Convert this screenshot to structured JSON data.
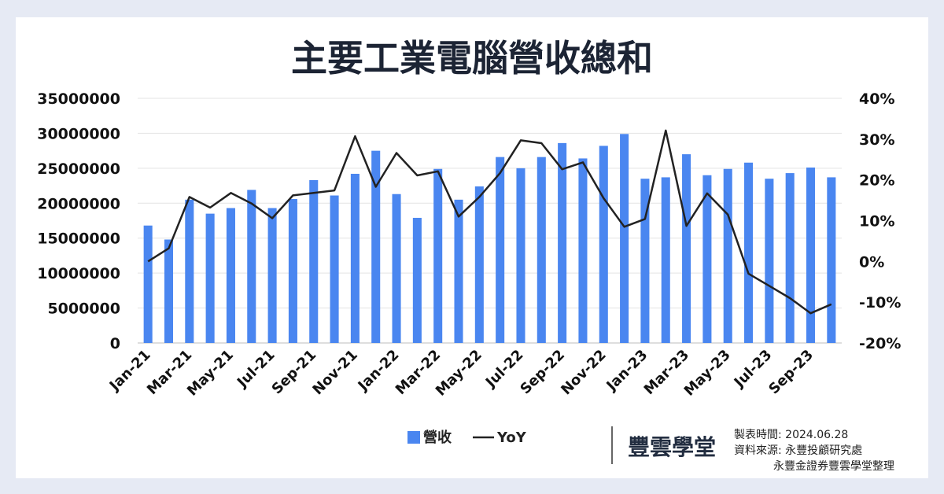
{
  "chart_data": {
    "type": "bar+line",
    "title": "主要工業電腦營收總和",
    "categories": [
      "Jan-21",
      "Feb-21",
      "Mar-21",
      "Apr-21",
      "May-21",
      "Jun-21",
      "Jul-21",
      "Aug-21",
      "Sep-21",
      "Oct-21",
      "Nov-21",
      "Dec-21",
      "Jan-22",
      "Feb-22",
      "Mar-22",
      "Apr-22",
      "May-22",
      "Jun-22",
      "Jul-22",
      "Aug-22",
      "Sep-22",
      "Oct-22",
      "Nov-22",
      "Dec-22",
      "Jan-23",
      "Feb-23",
      "Mar-23",
      "Apr-23",
      "May-23",
      "Jun-23",
      "Jul-23",
      "Aug-23",
      "Sep-23",
      "Oct-23"
    ],
    "x_tick_labels": [
      "Jan-21",
      "Mar-21",
      "May-21",
      "Jul-21",
      "Sep-21",
      "Nov-21",
      "Jan-22",
      "Mar-22",
      "May-22",
      "Jul-22",
      "Sep-22",
      "Nov-22",
      "Jan-23",
      "Mar-23",
      "May-23",
      "Jul-23",
      "Sep-23"
    ],
    "series": [
      {
        "name": "營收",
        "type": "bar",
        "axis": "left",
        "color": "#4a86f0",
        "values": [
          16800000,
          14800000,
          20500000,
          18500000,
          19300000,
          21900000,
          19300000,
          20600000,
          23300000,
          21100000,
          24200000,
          27500000,
          21300000,
          17900000,
          24900000,
          20500000,
          22400000,
          26600000,
          25000000,
          26600000,
          28600000,
          26400000,
          28200000,
          29900000,
          23500000,
          23700000,
          27000000,
          24000000,
          24900000,
          25800000,
          23500000,
          24300000,
          25100000,
          23700000
        ]
      },
      {
        "name": "YoY",
        "type": "line",
        "axis": "right",
        "color": "#222222",
        "values": [
          0.0,
          3.2,
          15.8,
          13.2,
          16.8,
          14.2,
          10.6,
          16.2,
          16.8,
          17.4,
          30.7,
          18.3,
          26.6,
          21.1,
          22.1,
          11.0,
          15.8,
          21.7,
          29.7,
          29.0,
          22.6,
          24.3,
          15.5,
          8.5,
          10.4,
          32.1,
          8.7,
          16.7,
          11.5,
          -3.0,
          -6.0,
          -9.0,
          -12.7,
          -10.5
        ]
      }
    ],
    "y_left": {
      "min": 0,
      "max": 35000000,
      "tick_labels": [
        "0",
        "5000000",
        "10000000",
        "15000000",
        "20000000",
        "25000000",
        "30000000",
        "35000000"
      ]
    },
    "y_right": {
      "min": -20,
      "max": 40,
      "tick_labels": [
        "-20%",
        "-10%",
        "0%",
        "10%",
        "20%",
        "30%",
        "40%"
      ]
    },
    "grid": true,
    "legend_position": "bottom-center"
  },
  "legend": {
    "bar_label": "營收",
    "line_label": "YoY"
  },
  "footer": {
    "brand": "豐雲學堂",
    "date_line": "製表時間:  2024.06.28",
    "source_line": "資料來源:  永豐投顧研究處",
    "credit_line": "永豐金證券豐雲學堂整理"
  }
}
